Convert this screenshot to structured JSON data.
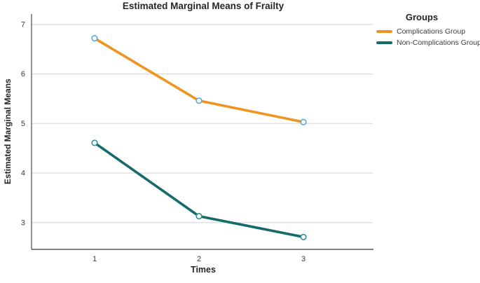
{
  "chart_data": {
    "type": "line",
    "title": "Estimated Marginal Means of Frailty",
    "xlabel": "Times",
    "ylabel": "Estimated Marginal Means",
    "categories": [
      "1",
      "2",
      "3"
    ],
    "series": [
      {
        "name": "Complications Group",
        "color": "#F0941F",
        "marker_color": "#5AA7DF",
        "values": [
          6.72,
          5.46,
          5.03
        ]
      },
      {
        "name": "Non-Complications Group",
        "color": "#156A6C",
        "marker_color": "#2E8F8B",
        "values": [
          4.61,
          3.13,
          2.71
        ]
      }
    ],
    "yticks": [
      3,
      4,
      5,
      6,
      7
    ],
    "ylim": [
      2.46,
      7.21
    ],
    "legend_title": "Groups",
    "legend_position": "right",
    "grid": "horizontal-only",
    "marker_shape": "open-circle"
  },
  "colors": {
    "background": "#ffffff",
    "gridline": "#D8D8D8",
    "axis": "#595959",
    "tick_text": "#3D3D3D",
    "title_text": "#262626"
  }
}
